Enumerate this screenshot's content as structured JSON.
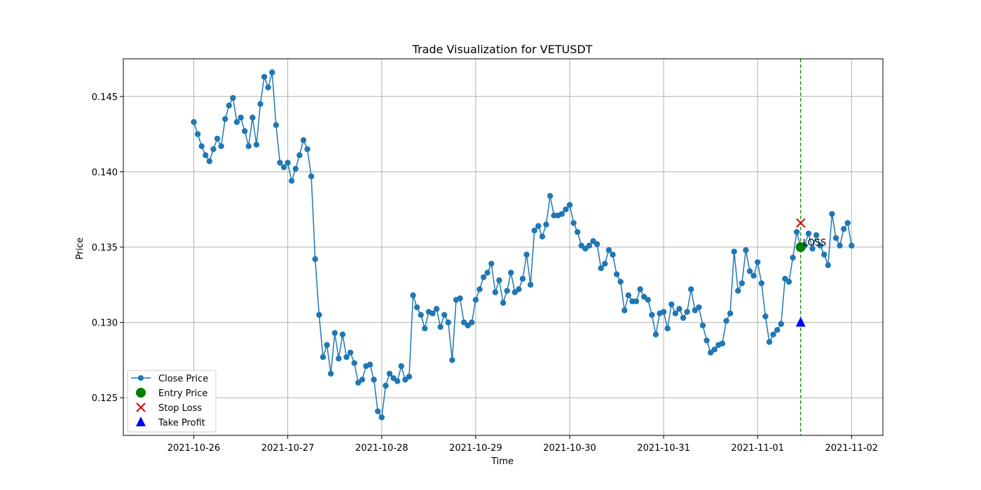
{
  "chart_data": {
    "type": "line",
    "title": "Trade Visualization for VETUSDT",
    "xlabel": "Time",
    "ylabel": "Price",
    "x_start": "2021-10-26",
    "x_step_hours": 1,
    "x_ticks": [
      "2021-10-26",
      "2021-10-27",
      "2021-10-28",
      "2021-10-29",
      "2021-10-30",
      "2021-10-31",
      "2021-11-01",
      "2021-11-02"
    ],
    "y_ticks": [
      "0.125",
      "0.130",
      "0.135",
      "0.140",
      "0.145"
    ],
    "xlim": [
      "2021-10-25 06:00",
      "2021-11-02 08:00"
    ],
    "ylim": [
      0.1225,
      0.1475
    ],
    "grid": true,
    "legend_position": "lower-left",
    "series": [
      {
        "name": "Close Price",
        "color": "#1f77b4",
        "marker": "circle",
        "values": [
          0.1433,
          0.1425,
          0.1417,
          0.1411,
          0.1407,
          0.1415,
          0.1422,
          0.1417,
          0.1435,
          0.1444,
          0.1449,
          0.1433,
          0.1436,
          0.1427,
          0.1417,
          0.1436,
          0.1418,
          0.1445,
          0.1463,
          0.1456,
          0.1466,
          0.1431,
          0.1406,
          0.1403,
          0.1406,
          0.1394,
          0.1402,
          0.1411,
          0.1421,
          0.1415,
          0.1397,
          0.1342,
          0.1305,
          0.1277,
          0.1285,
          0.1266,
          0.1293,
          0.1276,
          0.1292,
          0.1277,
          0.128,
          0.1273,
          0.126,
          0.1262,
          0.1271,
          0.1272,
          0.1262,
          0.1241,
          0.1237,
          0.1258,
          0.1266,
          0.1263,
          0.1261,
          0.1271,
          0.1262,
          0.1264,
          0.1318,
          0.131,
          0.1305,
          0.1296,
          0.1307,
          0.1306,
          0.1309,
          0.1297,
          0.1305,
          0.13,
          0.1275,
          0.1315,
          0.1316,
          0.13,
          0.1298,
          0.13,
          0.1315,
          0.1322,
          0.133,
          0.1333,
          0.1339,
          0.132,
          0.1328,
          0.1313,
          0.1321,
          0.1333,
          0.132,
          0.1322,
          0.1329,
          0.1345,
          0.1325,
          0.1361,
          0.1364,
          0.1357,
          0.1365,
          0.1384,
          0.1371,
          0.1371,
          0.1372,
          0.1375,
          0.1378,
          0.1366,
          0.136,
          0.1351,
          0.1349,
          0.1351,
          0.1354,
          0.1352,
          0.1336,
          0.1339,
          0.1348,
          0.1345,
          0.1332,
          0.1327,
          0.1308,
          0.1318,
          0.1314,
          0.1314,
          0.1322,
          0.1317,
          0.1315,
          0.1305,
          0.1292,
          0.1306,
          0.1307,
          0.1296,
          0.1312,
          0.1306,
          0.1309,
          0.1303,
          0.1307,
          0.1322,
          0.1308,
          0.131,
          0.1298,
          0.1288,
          0.128,
          0.1282,
          0.1285,
          0.1286,
          0.1301,
          0.1306,
          0.1347,
          0.1321,
          0.1326,
          0.1348,
          0.1334,
          0.1331,
          0.134,
          0.1326,
          0.1304,
          0.1287,
          0.1292,
          0.1295,
          0.1299,
          0.1329,
          0.1327,
          0.1343,
          0.136,
          0.135,
          0.1351,
          0.1359,
          0.1349,
          0.1358,
          0.1351,
          0.1345,
          0.1338,
          0.1372,
          0.1356,
          0.1351,
          0.1362,
          0.1366,
          0.1351
        ]
      }
    ],
    "trade": {
      "time": "2021-11-01 11:00",
      "entry_price": 0.135,
      "stop_loss": 0.1366,
      "take_profit": 0.13,
      "annotation": "LOSS",
      "line_color": "#008000"
    },
    "legend": [
      {
        "label": "Close Price",
        "marker": "line-circle",
        "color": "#1f77b4"
      },
      {
        "label": "Entry Price",
        "marker": "circle",
        "color": "#008000"
      },
      {
        "label": "Stop Loss",
        "marker": "x",
        "color": "#e00000"
      },
      {
        "label": "Take Profit",
        "marker": "triangle",
        "color": "#0000ff"
      }
    ]
  }
}
